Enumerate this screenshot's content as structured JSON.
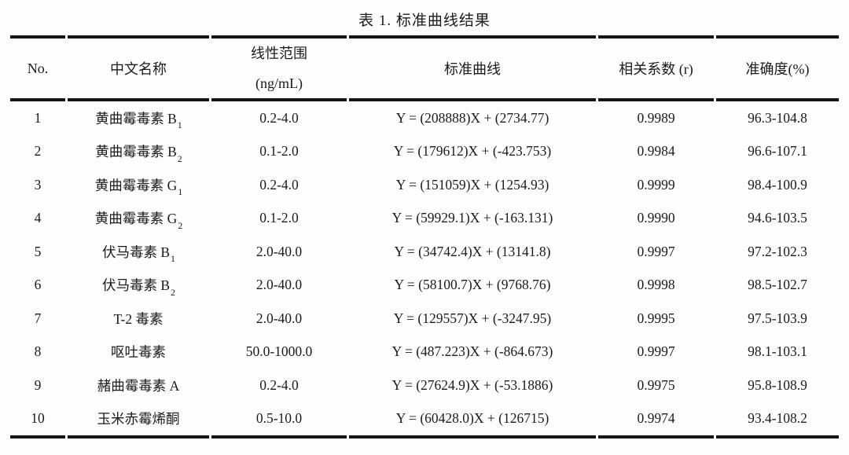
{
  "title": "表 1. 标准曲线结果",
  "columns": {
    "no": "No.",
    "name": "中文名称",
    "range_line1": "线性范围",
    "range_line2": "(ng/mL)",
    "curve": "标准曲线",
    "r": "相关系数 (r)",
    "accuracy": "准确度(%)"
  },
  "rows": [
    {
      "no": "1",
      "name": "黄曲霉毒素 B",
      "name_sub": "1",
      "range": "0.2-4.0",
      "curve": "Y = (208888)X + (2734.77)",
      "r": "0.9989",
      "accuracy": "96.3-104.8"
    },
    {
      "no": "2",
      "name": "黄曲霉毒素 B",
      "name_sub": "2",
      "range": "0.1-2.0",
      "curve": "Y = (179612)X + (-423.753)",
      "r": "0.9984",
      "accuracy": "96.6-107.1"
    },
    {
      "no": "3",
      "name": "黄曲霉毒素 G",
      "name_sub": "1",
      "range": "0.2-4.0",
      "curve": "Y = (151059)X + (1254.93)",
      "r": "0.9999",
      "accuracy": "98.4-100.9"
    },
    {
      "no": "4",
      "name": "黄曲霉毒素 G",
      "name_sub": "2",
      "range": "0.1-2.0",
      "curve": "Y = (59929.1)X + (-163.131)",
      "r": "0.9990",
      "accuracy": "94.6-103.5"
    },
    {
      "no": "5",
      "name": "伏马毒素 B",
      "name_sub": "1",
      "range": "2.0-40.0",
      "curve": "Y = (34742.4)X + (13141.8)",
      "r": "0.9997",
      "accuracy": "97.2-102.3"
    },
    {
      "no": "6",
      "name": "伏马毒素 B",
      "name_sub": "2",
      "range": "2.0-40.0",
      "curve": "Y = (58100.7)X + (9768.76)",
      "r": "0.9998",
      "accuracy": "98.5-102.7"
    },
    {
      "no": "7",
      "name": "T-2 毒素",
      "name_sub": "",
      "range": "2.0-40.0",
      "curve": "Y = (129557)X + (-3247.95)",
      "r": "0.9995",
      "accuracy": "97.5-103.9"
    },
    {
      "no": "8",
      "name": "呕吐毒素",
      "name_sub": "",
      "range": "50.0-1000.0",
      "curve": "Y = (487.223)X + (-864.673)",
      "r": "0.9997",
      "accuracy": "98.1-103.1"
    },
    {
      "no": "9",
      "name": "赭曲霉毒素 A",
      "name_sub": "",
      "range": "0.2-4.0",
      "curve": "Y = (27624.9)X + (-53.1886)",
      "r": "0.9975",
      "accuracy": "95.8-108.9"
    },
    {
      "no": "10",
      "name": "玉米赤霉烯酮",
      "name_sub": "",
      "range": "0.5-10.0",
      "curve": "Y = (60428.0)X + (126715)",
      "r": "0.9974",
      "accuracy": "93.4-108.2"
    }
  ]
}
